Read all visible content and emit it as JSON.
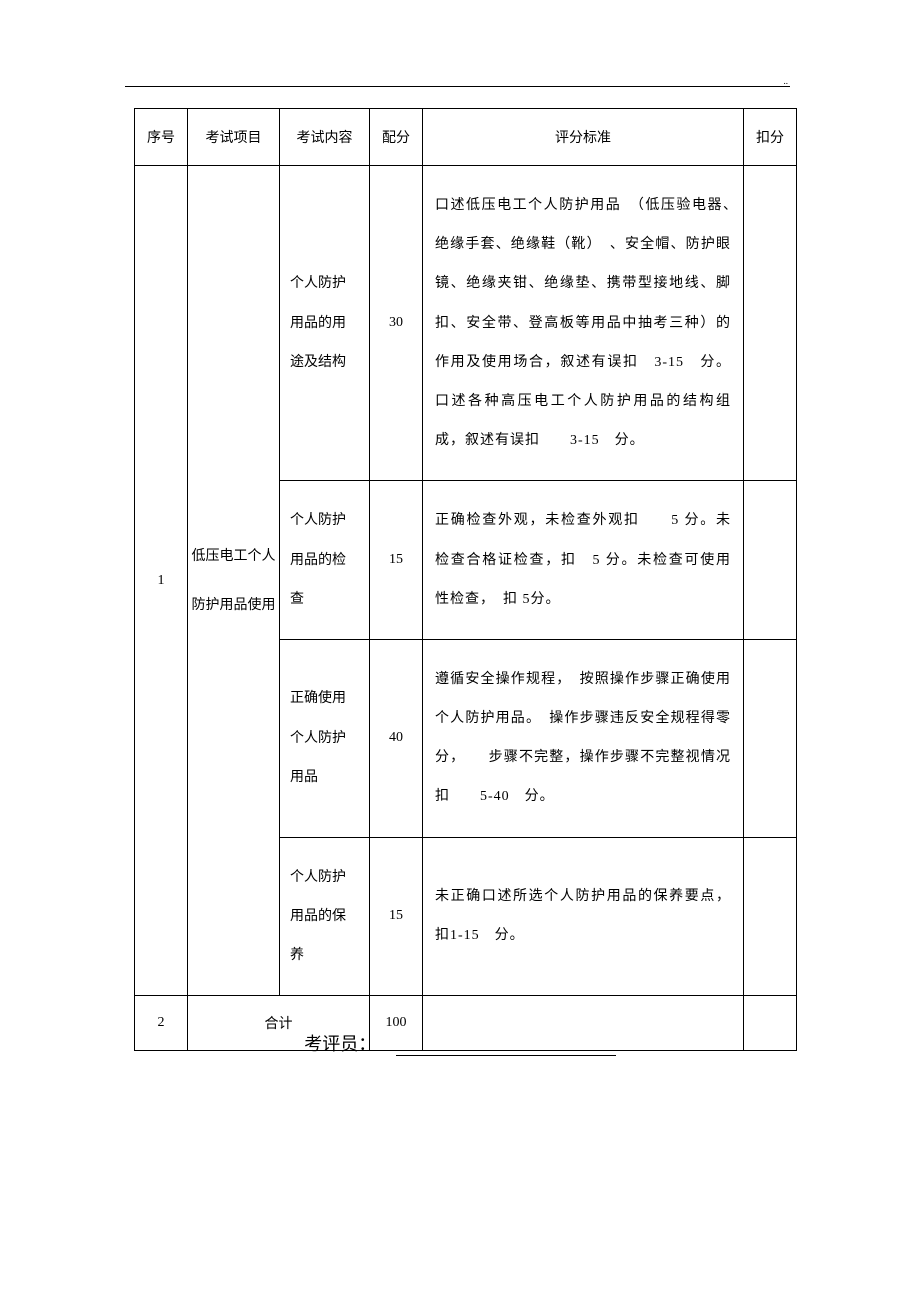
{
  "header": {
    "mark": ".."
  },
  "table": {
    "headers": {
      "seq": "序号",
      "item": "考试项目",
      "content": "考试内容",
      "score": "配分",
      "criteria": "评分标准",
      "deduct": "扣分"
    },
    "rows": [
      {
        "seq": "1",
        "item": "低压电工个人防护用品使用",
        "subrows": [
          {
            "content": "个人防护用品的用途及结构",
            "score": "30",
            "criteria": "口述低压电工个人防护用品　（低压验电器、　绝缘手套、绝缘鞋（靴）　、安全帽、防护眼镜、绝缘夹钳、绝缘垫、携带型接地线、脚扣、安全带、登高板等用品中抽考三种）的作用及使用场合，叙述有误扣　3-15　分。口述各种高压电工个人防护用品的结构组成，叙述有误扣　　3-15　分。"
          },
          {
            "content": "个人防护用品的检查",
            "score": "15",
            "criteria": "正确检查外观，未检查外观扣　　5 分。未检查合格证检查，扣　5 分。未检查可使用性检查，　扣 5分。"
          },
          {
            "content": "正确使用个人防护用品",
            "score": "40",
            "criteria": "遵循安全操作规程，　按照操作步骤正确使用个人防护用品。　操作步骤违反安全规程得零分，　　步骤不完整，操作步骤不完整视情况扣　　5-40　分。"
          },
          {
            "content": "个人防护用品的保养",
            "score": "15",
            "criteria": "未正确口述所选个人防护用品的保养要点，扣1-15　分。"
          }
        ]
      }
    ],
    "total": {
      "seq": "2",
      "label": "合计",
      "score": "100"
    }
  },
  "examiner": {
    "label": "考评员："
  },
  "styles": {
    "text_color": "#000000",
    "background_color": "#ffffff",
    "border_color": "#000000",
    "font_size_table": 14,
    "font_size_examiner": 18
  }
}
